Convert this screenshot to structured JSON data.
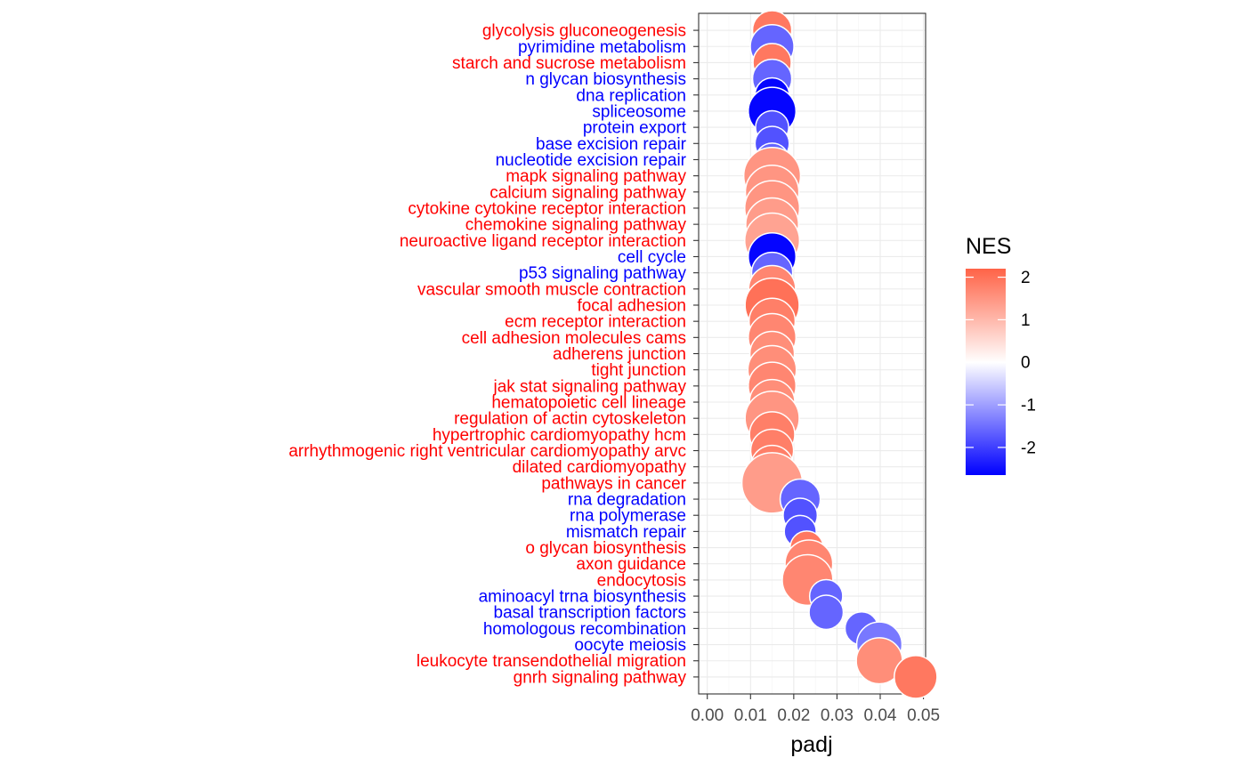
{
  "chart_data": {
    "type": "scatter",
    "xlabel": "padj",
    "ylabel": "",
    "xlim": [
      -0.002,
      0.0505
    ],
    "x_ticks": [
      0.0,
      0.01,
      0.02,
      0.03,
      0.04,
      0.05
    ],
    "x_tick_labels": [
      "0.00",
      "0.01",
      "0.02",
      "0.03",
      "0.04",
      "0.05"
    ],
    "grid": true,
    "legend": {
      "title": "NES",
      "position": "right",
      "range": [
        -2.65,
        2.2
      ],
      "ticks": [
        2,
        1,
        0,
        -1,
        -2
      ],
      "tick_labels": [
        "2",
        "1",
        "0",
        "-1",
        "-2"
      ],
      "low_color": "#0000FF",
      "mid_color": "#FFFFFF",
      "high_color": "#FF6347"
    },
    "positive_label_color": "#FF0000",
    "negative_label_color": "#0000FF",
    "points": [
      {
        "pathway": "glycolysis gluconeogenesis",
        "padj": 0.015,
        "nes": 1.9,
        "size": 0.42
      },
      {
        "pathway": "pyrimidine metabolism",
        "padj": 0.015,
        "nes": -1.6,
        "size": 0.52
      },
      {
        "pathway": "starch and sucrose metabolism",
        "padj": 0.015,
        "nes": 1.9,
        "size": 0.4
      },
      {
        "pathway": "n glycan biosynthesis",
        "padj": 0.015,
        "nes": -1.6,
        "size": 0.42
      },
      {
        "pathway": "dna replication",
        "padj": 0.015,
        "nes": -2.6,
        "size": 0.32
      },
      {
        "pathway": "spliceosome",
        "padj": 0.015,
        "nes": -2.6,
        "size": 0.62
      },
      {
        "pathway": "protein export",
        "padj": 0.015,
        "nes": -1.8,
        "size": 0.3
      },
      {
        "pathway": "base excision repair",
        "padj": 0.015,
        "nes": -1.8,
        "size": 0.32
      },
      {
        "pathway": "nucleotide excision repair",
        "padj": 0.015,
        "nes": -1.6,
        "size": 0.3
      },
      {
        "pathway": "mapk signaling pathway",
        "padj": 0.015,
        "nes": 1.5,
        "size": 0.88
      },
      {
        "pathway": "calcium signaling pathway",
        "padj": 0.015,
        "nes": 1.5,
        "size": 0.78
      },
      {
        "pathway": "cytokine cytokine receptor interaction",
        "padj": 0.015,
        "nes": 1.5,
        "size": 0.82
      },
      {
        "pathway": "chemokine signaling pathway",
        "padj": 0.015,
        "nes": 1.4,
        "size": 0.76
      },
      {
        "pathway": "neuroactive ligand receptor interaction",
        "padj": 0.015,
        "nes": 1.3,
        "size": 0.82
      },
      {
        "pathway": "cell cycle",
        "padj": 0.015,
        "nes": -2.6,
        "size": 0.62
      },
      {
        "pathway": "p53 signaling pathway",
        "padj": 0.015,
        "nes": -1.6,
        "size": 0.46
      },
      {
        "pathway": "vascular smooth muscle contraction",
        "padj": 0.015,
        "nes": 1.7,
        "size": 0.6
      },
      {
        "pathway": "focal adhesion",
        "padj": 0.015,
        "nes": 2.0,
        "size": 0.8
      },
      {
        "pathway": "ecm receptor interaction",
        "padj": 0.015,
        "nes": 1.8,
        "size": 0.58
      },
      {
        "pathway": "cell adhesion molecules cams",
        "padj": 0.015,
        "nes": 1.7,
        "size": 0.62
      },
      {
        "pathway": "adherens junction",
        "padj": 0.015,
        "nes": 1.6,
        "size": 0.54
      },
      {
        "pathway": "tight junction",
        "padj": 0.015,
        "nes": 1.6,
        "size": 0.64
      },
      {
        "pathway": "jak stat signaling pathway",
        "padj": 0.015,
        "nes": 1.7,
        "size": 0.62
      },
      {
        "pathway": "hematopoietic cell lineage",
        "padj": 0.015,
        "nes": 1.6,
        "size": 0.56
      },
      {
        "pathway": "regulation of actin cytoskeleton",
        "padj": 0.015,
        "nes": 1.5,
        "size": 0.8
      },
      {
        "pathway": "hypertrophic cardiomyopathy hcm",
        "padj": 0.015,
        "nes": 1.8,
        "size": 0.56
      },
      {
        "pathway": "arrhythmogenic right ventricular cardiomyopathy arvc",
        "padj": 0.015,
        "nes": 1.8,
        "size": 0.5
      },
      {
        "pathway": "dilated cardiomyopathy",
        "padj": 0.015,
        "nes": 1.8,
        "size": 0.5
      },
      {
        "pathway": "pathways in cancer",
        "padj": 0.015,
        "nes": 1.4,
        "size": 1.0
      },
      {
        "pathway": "rna degradation",
        "padj": 0.0215,
        "nes": -1.6,
        "size": 0.44
      },
      {
        "pathway": "rna polymerase",
        "padj": 0.0215,
        "nes": -1.8,
        "size": 0.32
      },
      {
        "pathway": "mismatch repair",
        "padj": 0.0215,
        "nes": -1.8,
        "size": 0.28
      },
      {
        "pathway": "o glycan biosynthesis",
        "padj": 0.023,
        "nes": 1.9,
        "size": 0.3
      },
      {
        "pathway": "axon guidance",
        "padj": 0.0235,
        "nes": 1.7,
        "size": 0.62
      },
      {
        "pathway": "endocytosis",
        "padj": 0.0232,
        "nes": 1.7,
        "size": 0.7
      },
      {
        "pathway": "aminoacyl trna biosynthesis",
        "padj": 0.0275,
        "nes": -1.6,
        "size": 0.3
      },
      {
        "pathway": "basal transcription factors",
        "padj": 0.0275,
        "nes": -1.6,
        "size": 0.32
      },
      {
        "pathway": "homologous recombination",
        "padj": 0.0357,
        "nes": -1.6,
        "size": 0.3
      },
      {
        "pathway": "oocyte meiosis",
        "padj": 0.0398,
        "nes": -1.4,
        "size": 0.56
      },
      {
        "pathway": "leukocyte transendothelial migration",
        "padj": 0.0398,
        "nes": 1.6,
        "size": 0.58
      },
      {
        "pathway": "gnrh signaling pathway",
        "padj": 0.0482,
        "nes": 1.9,
        "size": 0.5
      }
    ]
  }
}
